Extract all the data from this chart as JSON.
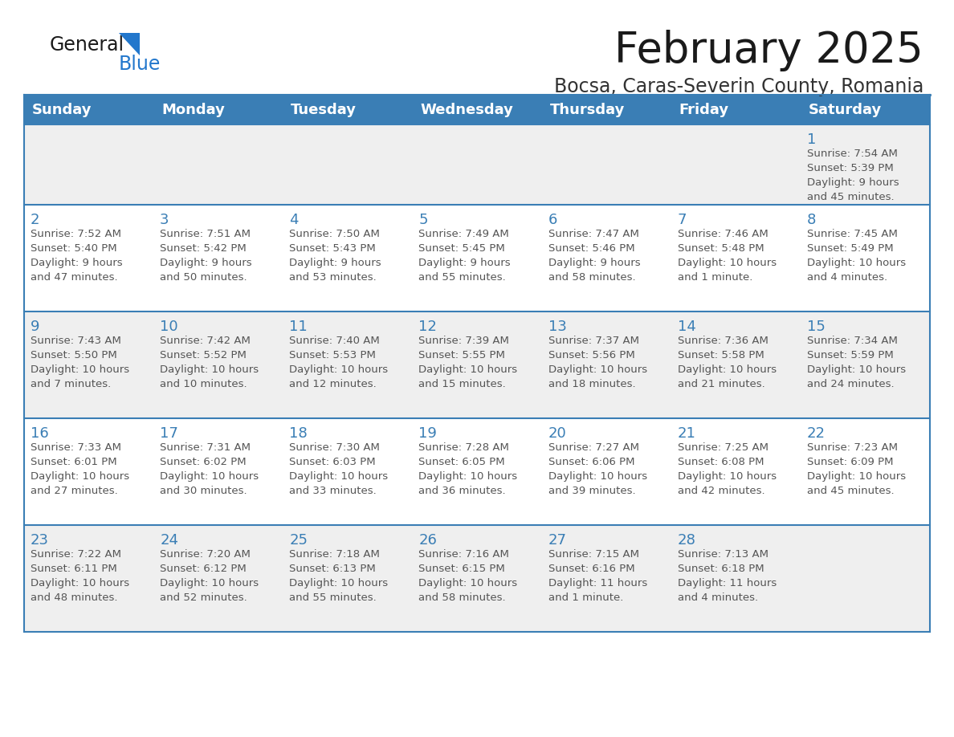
{
  "title": "February 2025",
  "subtitle": "Bocsa, Caras-Severin County, Romania",
  "header_bg": "#3a7eb5",
  "header_text_color": "#ffffff",
  "day_names": [
    "Sunday",
    "Monday",
    "Tuesday",
    "Wednesday",
    "Thursday",
    "Friday",
    "Saturday"
  ],
  "row_bg_odd": "#efefef",
  "row_bg_even": "#ffffff",
  "cell_border_color": "#3a7eb5",
  "day_number_color": "#3a7eb5",
  "info_text_color": "#555555",
  "title_color": "#1a1a1a",
  "subtitle_color": "#333333",
  "logo_general_color": "#1a1a1a",
  "logo_blue_color": "#2277cc",
  "calendar_data": [
    [
      {
        "day": null,
        "info": ""
      },
      {
        "day": null,
        "info": ""
      },
      {
        "day": null,
        "info": ""
      },
      {
        "day": null,
        "info": ""
      },
      {
        "day": null,
        "info": ""
      },
      {
        "day": null,
        "info": ""
      },
      {
        "day": 1,
        "info": "Sunrise: 7:54 AM\nSunset: 5:39 PM\nDaylight: 9 hours\nand 45 minutes."
      }
    ],
    [
      {
        "day": 2,
        "info": "Sunrise: 7:52 AM\nSunset: 5:40 PM\nDaylight: 9 hours\nand 47 minutes."
      },
      {
        "day": 3,
        "info": "Sunrise: 7:51 AM\nSunset: 5:42 PM\nDaylight: 9 hours\nand 50 minutes."
      },
      {
        "day": 4,
        "info": "Sunrise: 7:50 AM\nSunset: 5:43 PM\nDaylight: 9 hours\nand 53 minutes."
      },
      {
        "day": 5,
        "info": "Sunrise: 7:49 AM\nSunset: 5:45 PM\nDaylight: 9 hours\nand 55 minutes."
      },
      {
        "day": 6,
        "info": "Sunrise: 7:47 AM\nSunset: 5:46 PM\nDaylight: 9 hours\nand 58 minutes."
      },
      {
        "day": 7,
        "info": "Sunrise: 7:46 AM\nSunset: 5:48 PM\nDaylight: 10 hours\nand 1 minute."
      },
      {
        "day": 8,
        "info": "Sunrise: 7:45 AM\nSunset: 5:49 PM\nDaylight: 10 hours\nand 4 minutes."
      }
    ],
    [
      {
        "day": 9,
        "info": "Sunrise: 7:43 AM\nSunset: 5:50 PM\nDaylight: 10 hours\nand 7 minutes."
      },
      {
        "day": 10,
        "info": "Sunrise: 7:42 AM\nSunset: 5:52 PM\nDaylight: 10 hours\nand 10 minutes."
      },
      {
        "day": 11,
        "info": "Sunrise: 7:40 AM\nSunset: 5:53 PM\nDaylight: 10 hours\nand 12 minutes."
      },
      {
        "day": 12,
        "info": "Sunrise: 7:39 AM\nSunset: 5:55 PM\nDaylight: 10 hours\nand 15 minutes."
      },
      {
        "day": 13,
        "info": "Sunrise: 7:37 AM\nSunset: 5:56 PM\nDaylight: 10 hours\nand 18 minutes."
      },
      {
        "day": 14,
        "info": "Sunrise: 7:36 AM\nSunset: 5:58 PM\nDaylight: 10 hours\nand 21 minutes."
      },
      {
        "day": 15,
        "info": "Sunrise: 7:34 AM\nSunset: 5:59 PM\nDaylight: 10 hours\nand 24 minutes."
      }
    ],
    [
      {
        "day": 16,
        "info": "Sunrise: 7:33 AM\nSunset: 6:01 PM\nDaylight: 10 hours\nand 27 minutes."
      },
      {
        "day": 17,
        "info": "Sunrise: 7:31 AM\nSunset: 6:02 PM\nDaylight: 10 hours\nand 30 minutes."
      },
      {
        "day": 18,
        "info": "Sunrise: 7:30 AM\nSunset: 6:03 PM\nDaylight: 10 hours\nand 33 minutes."
      },
      {
        "day": 19,
        "info": "Sunrise: 7:28 AM\nSunset: 6:05 PM\nDaylight: 10 hours\nand 36 minutes."
      },
      {
        "day": 20,
        "info": "Sunrise: 7:27 AM\nSunset: 6:06 PM\nDaylight: 10 hours\nand 39 minutes."
      },
      {
        "day": 21,
        "info": "Sunrise: 7:25 AM\nSunset: 6:08 PM\nDaylight: 10 hours\nand 42 minutes."
      },
      {
        "day": 22,
        "info": "Sunrise: 7:23 AM\nSunset: 6:09 PM\nDaylight: 10 hours\nand 45 minutes."
      }
    ],
    [
      {
        "day": 23,
        "info": "Sunrise: 7:22 AM\nSunset: 6:11 PM\nDaylight: 10 hours\nand 48 minutes."
      },
      {
        "day": 24,
        "info": "Sunrise: 7:20 AM\nSunset: 6:12 PM\nDaylight: 10 hours\nand 52 minutes."
      },
      {
        "day": 25,
        "info": "Sunrise: 7:18 AM\nSunset: 6:13 PM\nDaylight: 10 hours\nand 55 minutes."
      },
      {
        "day": 26,
        "info": "Sunrise: 7:16 AM\nSunset: 6:15 PM\nDaylight: 10 hours\nand 58 minutes."
      },
      {
        "day": 27,
        "info": "Sunrise: 7:15 AM\nSunset: 6:16 PM\nDaylight: 11 hours\nand 1 minute."
      },
      {
        "day": 28,
        "info": "Sunrise: 7:13 AM\nSunset: 6:18 PM\nDaylight: 11 hours\nand 4 minutes."
      },
      {
        "day": null,
        "info": ""
      }
    ]
  ]
}
